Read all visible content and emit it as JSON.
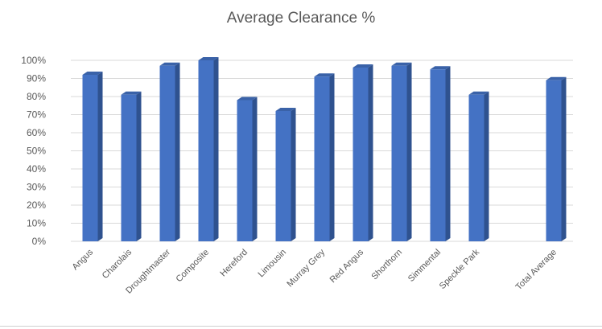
{
  "chart_data": {
    "type": "bar",
    "title": "Average Clearance %",
    "categories": [
      "Angus",
      "Charolais",
      "Droughtmaster",
      "Composite",
      "Hereford",
      "Limousin",
      "Murray Grey",
      "Red Angus",
      "Shorthorn",
      "Simmental",
      "Speckle Park",
      "",
      "Total Average"
    ],
    "values": [
      92,
      81,
      97,
      100,
      78,
      72,
      91,
      96,
      97,
      95,
      81,
      null,
      89
    ],
    "ylim": [
      0,
      100
    ],
    "yticks": [
      "0%",
      "10%",
      "20%",
      "30%",
      "40%",
      "50%",
      "60%",
      "70%",
      "80%",
      "90%",
      "100%"
    ],
    "xlabel": "",
    "ylabel": "",
    "grid": true,
    "bar_color": "#4472c4",
    "bar_side_color": "#2f528f",
    "bar_top_color": "#3a62a8"
  }
}
